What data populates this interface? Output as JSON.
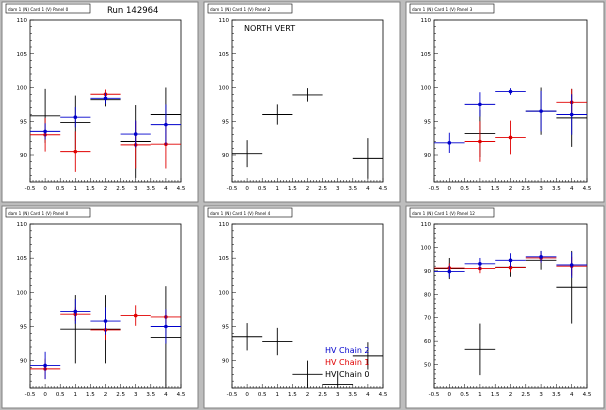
{
  "colors": {
    "background": "#bdbdbd",
    "panel": "#ffffff",
    "axis": "#000000",
    "chain0": "#000000",
    "chain1": "#e00000",
    "chain2": "#0000cc"
  },
  "chart_data": [
    {
      "type": "scatter",
      "header": "dam 1 (N) Card 1 (V) Panel 0",
      "annotation": "Run 142964",
      "xlim": [
        -0.5,
        4.5
      ],
      "ylim": [
        86,
        110
      ],
      "xticks": [
        "-0.5",
        "0",
        "0.5",
        "1",
        "1.5",
        "2",
        "2.5",
        "3",
        "3.5",
        "4",
        "4.5"
      ],
      "yticks": [
        90,
        95,
        100,
        105,
        110
      ],
      "series": [
        {
          "color": "chain0",
          "marker": false,
          "x": [
            0,
            1,
            2,
            3,
            4
          ],
          "y": [
            95.8,
            94.8,
            98.2,
            92.0,
            96.0
          ],
          "yerr": [
            4.0,
            4.0,
            1.0,
            5.4,
            4.0
          ]
        },
        {
          "color": "chain1",
          "marker": true,
          "x": [
            0,
            1,
            2,
            3,
            4
          ],
          "y": [
            93.0,
            90.5,
            99.0,
            91.5,
            91.6
          ],
          "yerr": [
            2.5,
            3.0,
            0.7,
            3.5,
            3.6
          ]
        },
        {
          "color": "chain2",
          "marker": true,
          "x": [
            0,
            1,
            2,
            3,
            4
          ],
          "y": [
            93.5,
            95.6,
            98.4,
            93.1,
            94.5
          ],
          "yerr": [
            1.2,
            1.5,
            0.8,
            2.0,
            3.0
          ]
        }
      ]
    },
    {
      "type": "scatter",
      "header": "dam 1 (N) Card 1 (V) Panel 2",
      "annotation": "NORTH VERT",
      "xlim": [
        -0.5,
        4.5
      ],
      "ylim": [
        86,
        110
      ],
      "xticks": [
        "-0.5",
        "0",
        "0.5",
        "1",
        "1.5",
        "2",
        "2.5",
        "3",
        "3.5",
        "4",
        "4.5"
      ],
      "yticks": [
        90,
        95,
        100,
        105,
        110
      ],
      "series": [
        {
          "color": "chain0",
          "marker": false,
          "x": [
            0,
            1,
            2,
            4
          ],
          "y": [
            90.2,
            96.0,
            98.9,
            89.5
          ],
          "yerr": [
            2.0,
            1.5,
            1.0,
            3.0
          ]
        }
      ]
    },
    {
      "type": "scatter",
      "header": "dam 1 (N) Card 1 (V) Panel 3",
      "annotation": "",
      "xlim": [
        -0.5,
        4.5
      ],
      "ylim": [
        86,
        110
      ],
      "xticks": [
        "-0.5",
        "0",
        "0.5",
        "1",
        "1.5",
        "2",
        "2.5",
        "3",
        "3.5",
        "4",
        "4.5"
      ],
      "yticks": [
        90,
        95,
        100,
        105,
        110
      ],
      "series": [
        {
          "color": "chain0",
          "marker": false,
          "x": [
            1,
            3,
            4
          ],
          "y": [
            93.2,
            96.5,
            95.5
          ],
          "yerr": [
            3.5,
            3.5,
            4.3
          ]
        },
        {
          "color": "chain1",
          "marker": true,
          "x": [
            1,
            2,
            4
          ],
          "y": [
            92.0,
            92.6,
            97.8
          ],
          "yerr": [
            3.0,
            2.5,
            2.0
          ]
        },
        {
          "color": "chain2",
          "marker": true,
          "x": [
            0,
            1,
            2,
            3,
            4
          ],
          "y": [
            91.8,
            97.5,
            99.4,
            96.5,
            96.0
          ],
          "yerr": [
            1.5,
            1.8,
            0.5,
            3.0,
            3.0
          ]
        }
      ]
    },
    {
      "type": "scatter",
      "header": "dam 1 (N) Card 1 (V) Panel 0",
      "annotation": "",
      "xlim": [
        -0.5,
        4.5
      ],
      "ylim": [
        86,
        110
      ],
      "xticks": [
        "-0.5",
        "0",
        "0.5",
        "1",
        "1.5",
        "2",
        "2.5",
        "3",
        "3.5",
        "4",
        "4.5"
      ],
      "yticks": [
        90,
        95,
        100,
        105,
        110
      ],
      "series": [
        {
          "color": "chain0",
          "marker": false,
          "x": [
            1,
            2,
            4
          ],
          "y": [
            94.6,
            94.6,
            93.4
          ],
          "yerr": [
            5.0,
            5.0,
            7.5
          ]
        },
        {
          "color": "chain1",
          "marker": true,
          "x": [
            0,
            1,
            2,
            3,
            4
          ],
          "y": [
            88.8,
            96.8,
            94.5,
            96.6,
            96.4
          ],
          "yerr": [
            1.5,
            1.0,
            1.5,
            1.5,
            1.0
          ]
        },
        {
          "color": "chain2",
          "marker": true,
          "x": [
            0,
            1,
            2,
            4
          ],
          "y": [
            89.3,
            97.2,
            95.8,
            95.0
          ],
          "yerr": [
            2.0,
            1.8,
            2.0,
            2.5
          ]
        }
      ]
    },
    {
      "type": "scatter",
      "header": "dam 1 (N) Card 1 (V) Panel 4",
      "annotation": "",
      "xlim": [
        -0.5,
        4.5
      ],
      "ylim": [
        86,
        110
      ],
      "xticks": [
        "-0.5",
        "0",
        "0.5",
        "1",
        "1.5",
        "2",
        "2.5",
        "3",
        "3.5",
        "4",
        "4.5"
      ],
      "yticks": [
        90,
        95,
        100,
        105,
        110
      ],
      "legend": {
        "position": "bottom-right",
        "entries": [
          {
            "label": "HV Chain 2",
            "color": "chain2"
          },
          {
            "label": "HV Chain 1",
            "color": "chain1"
          },
          {
            "label": "HV Chain 0",
            "color": "chain0"
          }
        ]
      },
      "series": [
        {
          "color": "chain0",
          "marker": false,
          "x": [
            0,
            1,
            2,
            3,
            4
          ],
          "y": [
            93.5,
            92.8,
            88.0,
            86.5,
            90.7
          ],
          "yerr": [
            2.0,
            2.0,
            2.0,
            2.0,
            2.0
          ]
        }
      ]
    },
    {
      "type": "scatter",
      "header": "dam 1 (N) Card 1 (V) Panel 12",
      "annotation": "",
      "xlim": [
        -0.5,
        4.5
      ],
      "ylim": [
        40,
        110
      ],
      "xticks": [
        "-0.5",
        "0",
        "0.5",
        "1",
        "1.5",
        "2",
        "2.5",
        "3",
        "3.5",
        "4",
        "4.5"
      ],
      "yticks": [
        50,
        60,
        70,
        80,
        90,
        100,
        110
      ],
      "series": [
        {
          "color": "chain0",
          "marker": false,
          "x": [
            0,
            1,
            2,
            3,
            4
          ],
          "y": [
            91.0,
            56.5,
            91.5,
            94.5,
            83.0
          ],
          "yerr": [
            4.5,
            11.0,
            4.0,
            4.0,
            15.5
          ]
        },
        {
          "color": "chain1",
          "marker": true,
          "x": [
            0,
            1,
            2,
            3,
            4
          ],
          "y": [
            91.2,
            91.0,
            91.4,
            95.5,
            92.0
          ],
          "yerr": [
            2.0,
            2.0,
            2.0,
            2.0,
            4.0
          ]
        },
        {
          "color": "chain2",
          "marker": true,
          "x": [
            0,
            1,
            2,
            3,
            4
          ],
          "y": [
            89.7,
            93.0,
            94.5,
            96.0,
            92.5
          ],
          "yerr": [
            2.5,
            2.5,
            3.0,
            2.5,
            5.5
          ]
        }
      ]
    }
  ]
}
